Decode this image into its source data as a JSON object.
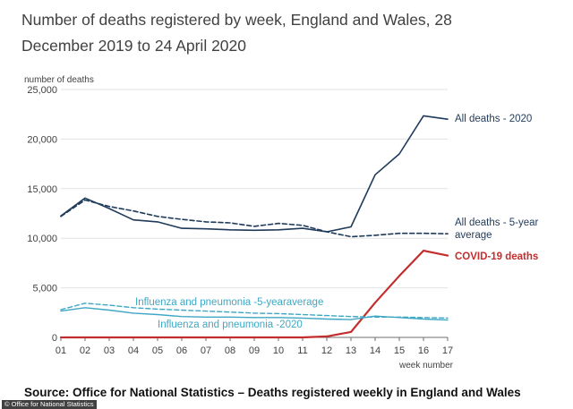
{
  "header": {
    "title": "Number of deaths registered by week, England and Wales, 28 December 2019 to 24 April 2020"
  },
  "footer": {
    "source": "Source: Office for National Statistics – Deaths registered weekly in England and Wales",
    "credit": "© Office for National Statistics"
  },
  "chart_data": {
    "type": "line",
    "title": "Number of deaths registered by week, England and Wales, 28 December 2019 to 24 April 2020",
    "xlabel": "week number",
    "ylabel": "number of deaths",
    "ylim": [
      0,
      25000
    ],
    "yticks": [
      0,
      5000,
      10000,
      15000,
      20000,
      25000
    ],
    "ytick_labels": [
      "0",
      "5,000",
      "10,000",
      "15,000",
      "20,000",
      "25,000"
    ],
    "x": [
      "01",
      "02",
      "03",
      "04",
      "05",
      "06",
      "07",
      "08",
      "09",
      "10",
      "11",
      "12",
      "13",
      "14",
      "15",
      "16",
      "17"
    ],
    "grid": true,
    "legend": "direct labels",
    "series": [
      {
        "name": "All deaths - 2020",
        "color": "#1f3a5a",
        "dash": false,
        "width": 1.6,
        "values": [
          12250,
          14050,
          13000,
          11850,
          11650,
          11000,
          10950,
          10850,
          10800,
          10850,
          11000,
          10650,
          11150,
          16400,
          18500,
          22350,
          22000
        ]
      },
      {
        "name": "All deaths - 5-year average",
        "color": "#1f3a5a",
        "dash": true,
        "width": 1.6,
        "values": [
          12200,
          13850,
          13200,
          12750,
          12200,
          11900,
          11650,
          11550,
          11200,
          11500,
          11300,
          10650,
          10150,
          10300,
          10500,
          10500,
          10450
        ]
      },
      {
        "name": "COVID-19 deaths",
        "color": "#c42d2d",
        "dash": false,
        "width": 2.2,
        "values": [
          0,
          0,
          0,
          0,
          0,
          0,
          0,
          0,
          0,
          0,
          0,
          100,
          550,
          3500,
          6200,
          8750,
          8250
        ]
      },
      {
        "name": "Influenza and pneumonia -5-yearaverage",
        "color": "#3fa7c4",
        "dash": true,
        "width": 1.4,
        "values": [
          2800,
          3450,
          3250,
          3000,
          2850,
          2750,
          2650,
          2550,
          2450,
          2400,
          2300,
          2200,
          2100,
          2050,
          2050,
          2000,
          1950
        ]
      },
      {
        "name": "Influenza and pneumonia -2020",
        "color": "#3fa7c4",
        "dash": false,
        "width": 1.4,
        "values": [
          2650,
          3000,
          2750,
          2450,
          2300,
          2100,
          2050,
          2050,
          2000,
          2000,
          1950,
          1850,
          1800,
          2150,
          2000,
          1850,
          1750
        ]
      }
    ],
    "labels": [
      {
        "text": "All deaths - 2020",
        "color": "#1f3a5a",
        "bold": false
      },
      {
        "text": "All deaths - 5-year",
        "color": "#1f3a5a",
        "bold": false
      },
      {
        "text": "average",
        "color": "#1f3a5a",
        "bold": false
      },
      {
        "text": "COVID-19 deaths",
        "color": "#c42d2d",
        "bold": true
      },
      {
        "text": "Influenza and pneumonia -5-yearaverage",
        "color": "#3fa7c4",
        "bold": false
      },
      {
        "text": "Influenza and pneumonia -2020",
        "color": "#3fa7c4",
        "bold": false
      }
    ]
  }
}
